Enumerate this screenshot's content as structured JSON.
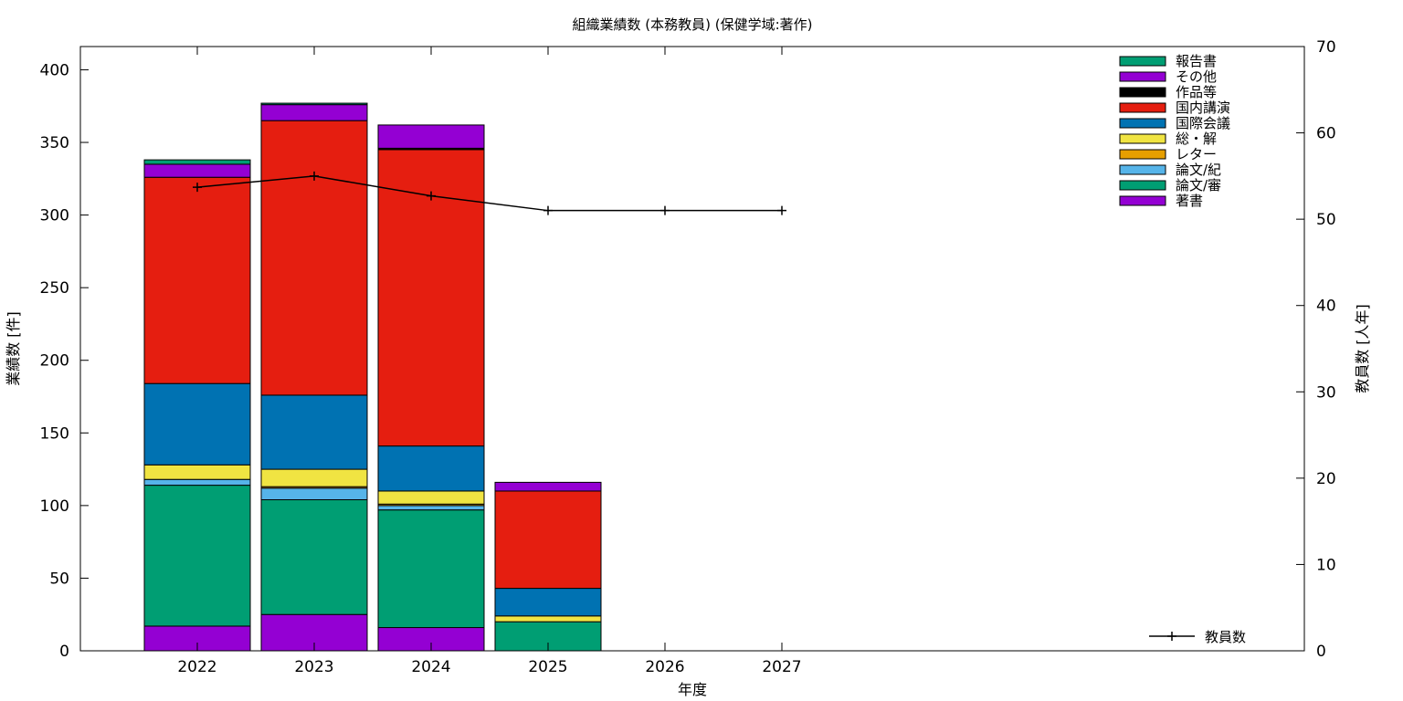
{
  "chart_data": {
    "type": "bar",
    "stacked": true,
    "title": "組織業績数 (本務教員) (保健学域:著作)",
    "xlabel": "年度",
    "ylabel": "業績数 [件]",
    "y2label": "教員数 [人年]",
    "categories": [
      "2022",
      "2023",
      "2024",
      "2025",
      "2026",
      "2027"
    ],
    "ylim": [
      0,
      416
    ],
    "yticks": [
      0,
      50,
      100,
      150,
      200,
      250,
      300,
      350,
      400
    ],
    "y2lim": [
      0,
      70
    ],
    "y2ticks": [
      0,
      10,
      20,
      30,
      40,
      50,
      60,
      70
    ],
    "legend_position": "top-right",
    "series": [
      {
        "name": "著書",
        "color": "#9400D3",
        "values": [
          17,
          25,
          16,
          0,
          0,
          0
        ]
      },
      {
        "name": "論文/審",
        "color": "#009E73",
        "values": [
          97,
          79,
          81,
          20,
          0,
          0
        ]
      },
      {
        "name": "論文/紀",
        "color": "#56B4E9",
        "values": [
          4,
          8,
          3,
          0,
          0,
          0
        ]
      },
      {
        "name": "レター",
        "color": "#E69F00",
        "values": [
          0,
          1,
          1,
          0,
          0,
          0
        ]
      },
      {
        "name": "総・解",
        "color": "#F0E442",
        "values": [
          10,
          12,
          9,
          4,
          0,
          0
        ]
      },
      {
        "name": "国際会議",
        "color": "#0072B2",
        "values": [
          56,
          51,
          31,
          19,
          0,
          0
        ]
      },
      {
        "name": "国内講演",
        "color": "#E51E10",
        "values": [
          142,
          189,
          204,
          67,
          0,
          0
        ]
      },
      {
        "name": "作品等",
        "color": "#000000",
        "values": [
          0,
          0,
          1,
          0,
          0,
          0
        ]
      },
      {
        "name": "その他",
        "color": "#9400D3",
        "values": [
          9,
          11,
          16,
          6,
          0,
          0
        ]
      },
      {
        "name": "報告書",
        "color": "#009E73",
        "values": [
          3,
          1,
          0,
          0,
          0,
          0
        ]
      }
    ],
    "line": {
      "name": "教員数",
      "color": "#000000",
      "values": [
        53.7,
        55.0,
        52.7,
        51.0,
        51.0,
        51.0
      ]
    }
  }
}
